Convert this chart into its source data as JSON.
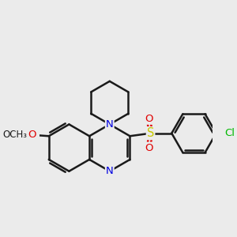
{
  "bg_color": "#ebebeb",
  "bond_color": "#1a1a1a",
  "bond_width": 1.8,
  "dbo": 0.055,
  "atom_colors": {
    "N": "#0000e0",
    "O": "#e00000",
    "S": "#c8c800",
    "Cl": "#00b800",
    "C": "#1a1a1a"
  },
  "fs": 9.5,
  "fs_small": 8.5
}
